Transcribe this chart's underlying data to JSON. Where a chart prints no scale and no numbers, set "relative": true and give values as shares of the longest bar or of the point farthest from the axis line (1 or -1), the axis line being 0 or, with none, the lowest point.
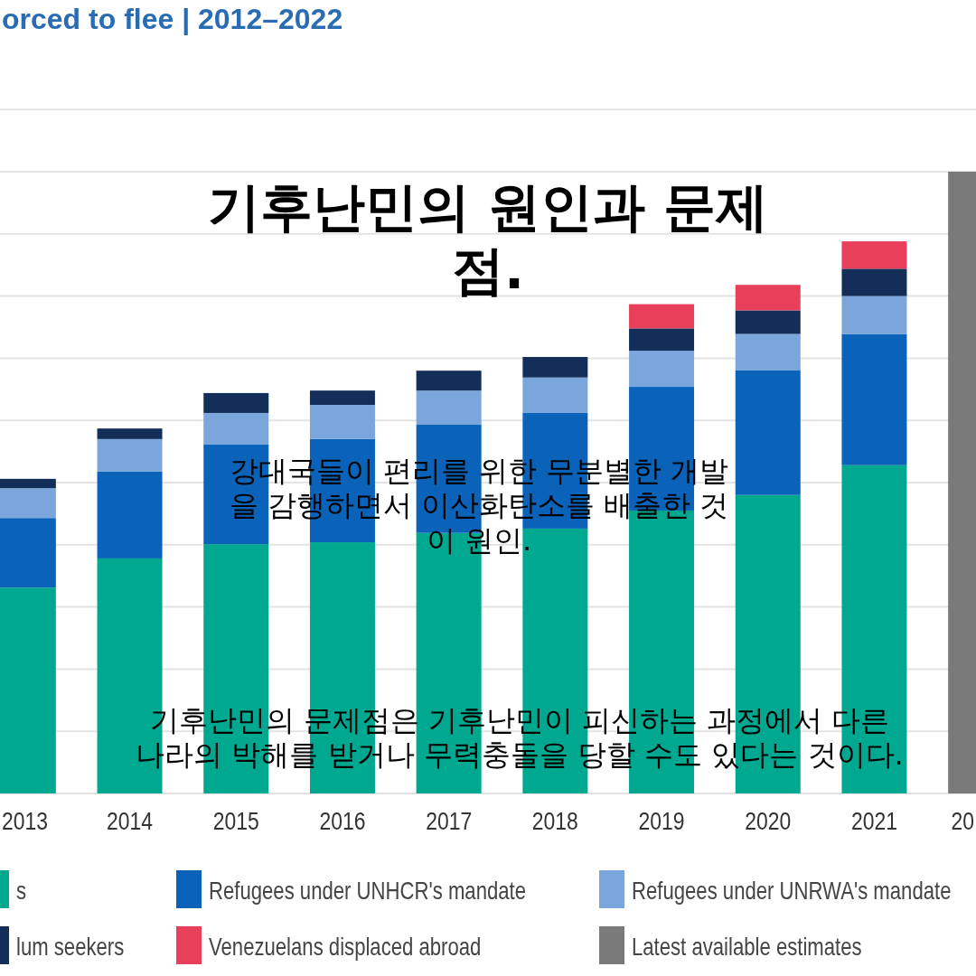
{
  "chart_data": {
    "type": "bar",
    "stacked": true,
    "relative": true,
    "grid": "y",
    "legend": "bottom",
    "title": "기후난민의 원인과 문제점.",
    "subtitle": "orced to flee | 2012–2022",
    "annotations": [
      "강대국들이 편리를 위한 무분별한 개발을 감행하면서 이산화탄소를 배출한 것이 원인.",
      "기후난민의 문제점은 기후난민이 피신하는 과정에서 다른나라의 박해를 받거나 무력충돌을 당할 수도 있다는 것이다."
    ],
    "categories": [
      "2013",
      "2014",
      "2015",
      "2016",
      "2017",
      "2018",
      "2019",
      "2020",
      "2021",
      "20"
    ],
    "series": [
      {
        "name": "s",
        "color": "#00a88f",
        "values": [
          0.331,
          0.378,
          0.401,
          0.404,
          0.419,
          0.426,
          0.455,
          0.48,
          0.528,
          null
        ]
      },
      {
        "name": "Refugees under UNHCR's mandate",
        "color": "#0a63b8",
        "values": [
          0.112,
          0.14,
          0.16,
          0.166,
          0.174,
          0.186,
          0.199,
          0.201,
          0.211,
          null
        ]
      },
      {
        "name": "Refugees under UNRWA's mandate",
        "color": "#7ba6dc",
        "values": [
          0.048,
          0.052,
          0.051,
          0.055,
          0.055,
          0.057,
          0.058,
          0.058,
          0.061,
          null
        ]
      },
      {
        "name": "lum seekers",
        "color": "#142e5a",
        "values": [
          0.015,
          0.017,
          0.032,
          0.023,
          0.032,
          0.033,
          0.036,
          0.038,
          0.044,
          null
        ]
      },
      {
        "name": "Venezuelans displaced abroad",
        "color": "#e8405a",
        "values": [
          null,
          null,
          null,
          null,
          null,
          null,
          0.039,
          0.041,
          0.044,
          null
        ]
      },
      {
        "name": "Latest available estimates",
        "color": "#7a7a7a",
        "values": [
          null,
          null,
          null,
          null,
          null,
          null,
          null,
          null,
          null,
          1.0
        ]
      }
    ]
  }
}
